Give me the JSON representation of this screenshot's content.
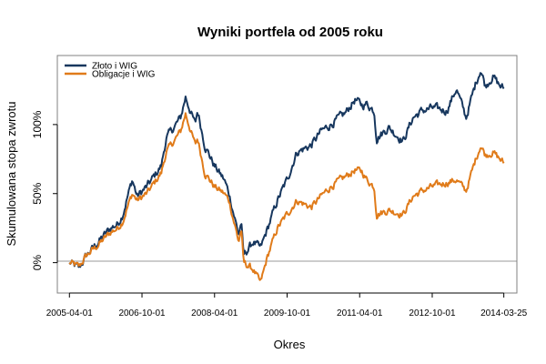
{
  "chart_data": {
    "type": "line",
    "title": "Wyniki portfela od 2005 roku",
    "xlabel": "Okres",
    "ylabel": "Skumulowana stopa zwrotu",
    "x_ticks": [
      "2005-04-01",
      "2006-10-01",
      "2008-04-01",
      "2009-10-01",
      "2011-04-01",
      "2012-10-01",
      "2014-03-25"
    ],
    "x_tick_positions": [
      0.0,
      1.5,
      3.0,
      4.5,
      6.0,
      7.5,
      8.98
    ],
    "y_ticks": [
      0,
      50,
      100
    ],
    "y_tick_labels": [
      "0%",
      "50%",
      "100%"
    ],
    "xlim": [
      -0.25,
      9.25
    ],
    "ylim": [
      -22,
      150
    ],
    "x_unit": "years since 2005-04-01",
    "y_unit": "percent",
    "reference_line": 0,
    "legend_position": "top-left",
    "series": [
      {
        "name": "Złoto i WIG",
        "color": "#17375e",
        "x": [
          0,
          0.2,
          0.35,
          0.6,
          0.85,
          1.0,
          1.1,
          1.3,
          1.4,
          1.6,
          1.9,
          2.0,
          2.3,
          2.4,
          2.6,
          2.65,
          2.8,
          3.0,
          3.2,
          3.3,
          3.5,
          3.55,
          3.6,
          3.8,
          3.95,
          4.1,
          4.3,
          4.5,
          4.7,
          5.0,
          5.2,
          5.4,
          5.7,
          5.9,
          6.05,
          6.15,
          6.3,
          6.35,
          6.6,
          6.9,
          7.1,
          7.3,
          7.5,
          7.8,
          8.0,
          8.2,
          8.4,
          8.5,
          8.6,
          8.75,
          8.9,
          8.98
        ],
        "y": [
          0,
          -4,
          5,
          15,
          25,
          28,
          35,
          60,
          48,
          55,
          70,
          90,
          105,
          120,
          100,
          110,
          85,
          70,
          60,
          50,
          20,
          30,
          5,
          15,
          10,
          25,
          45,
          60,
          80,
          85,
          95,
          100,
          108,
          118,
          114,
          115,
          110,
          90,
          98,
          88,
          105,
          110,
          112,
          110,
          126,
          105,
          130,
          140,
          128,
          135,
          128,
          126
        ]
      },
      {
        "name": "Obligacje i WIG",
        "color": "#e07b1a",
        "x": [
          0,
          0.2,
          0.35,
          0.6,
          0.85,
          1.0,
          1.1,
          1.3,
          1.4,
          1.6,
          1.9,
          2.0,
          2.3,
          2.4,
          2.6,
          2.65,
          2.8,
          3.0,
          3.2,
          3.3,
          3.5,
          3.55,
          3.6,
          3.8,
          3.95,
          4.1,
          4.3,
          4.5,
          4.7,
          5.0,
          5.2,
          5.4,
          5.7,
          5.9,
          6.05,
          6.15,
          6.3,
          6.35,
          6.6,
          6.9,
          7.1,
          7.3,
          7.5,
          7.8,
          8.0,
          8.2,
          8.4,
          8.5,
          8.6,
          8.75,
          8.9,
          8.98
        ],
        "y": [
          0,
          -3,
          5,
          13,
          22,
          25,
          30,
          50,
          45,
          50,
          65,
          80,
          95,
          108,
          85,
          90,
          65,
          55,
          50,
          45,
          15,
          25,
          0,
          -5,
          -15,
          5,
          25,
          35,
          45,
          40,
          48,
          55,
          62,
          67,
          66,
          60,
          55,
          35,
          38,
          35,
          48,
          52,
          55,
          58,
          60,
          52,
          75,
          85,
          78,
          80,
          75,
          72
        ]
      }
    ]
  }
}
